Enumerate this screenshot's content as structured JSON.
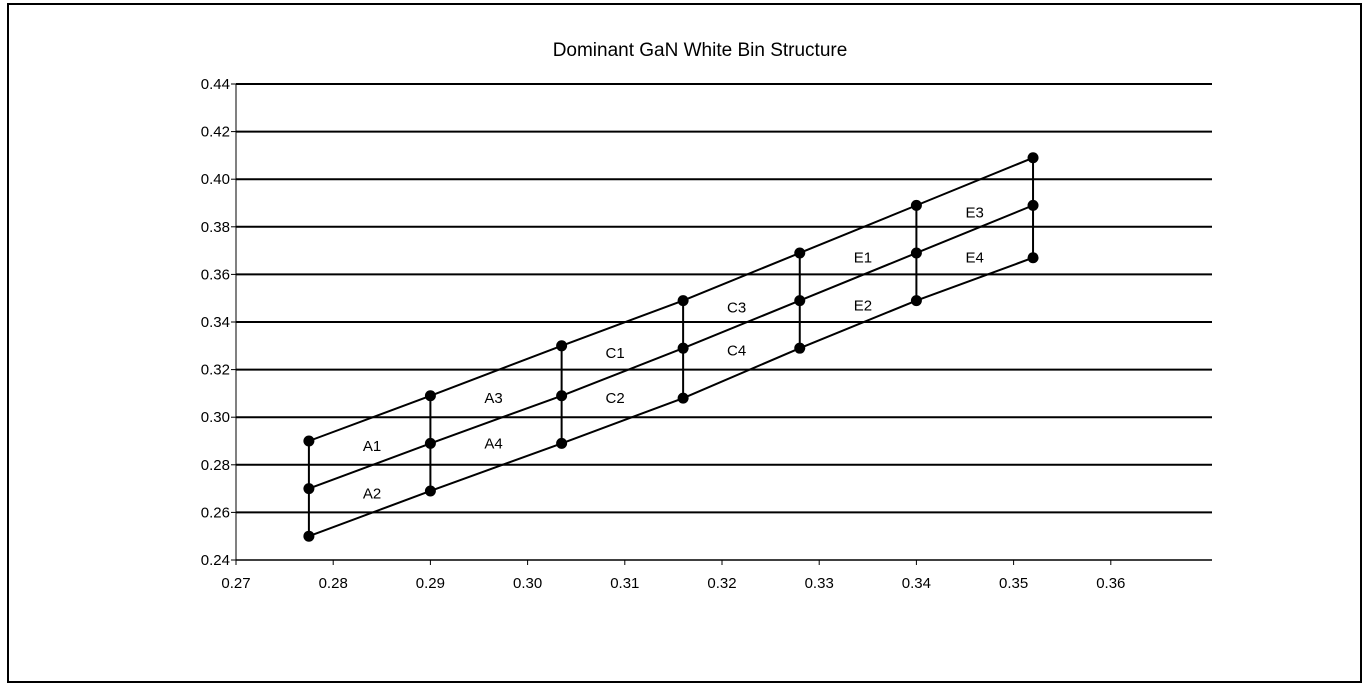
{
  "chart_data": {
    "type": "line",
    "title": "Dominant GaN White Bin Structure",
    "xlabel": "",
    "ylabel": "",
    "xlim": [
      0.27,
      0.37
    ],
    "ylim": [
      0.24,
      0.44
    ],
    "x_ticks": [
      "0.27",
      "0.28",
      "0.29",
      "0.30",
      "0.31",
      "0.32",
      "0.33",
      "0.34",
      "0.35",
      "0.36"
    ],
    "y_ticks": [
      "0.24",
      "0.26",
      "0.28",
      "0.30",
      "0.32",
      "0.34",
      "0.36",
      "0.38",
      "0.40",
      "0.42",
      "0.44"
    ],
    "grid": "horizontal",
    "series": [
      {
        "points": [
          [
            0.2775,
            0.29
          ],
          [
            0.29,
            0.309
          ],
          [
            0.3035,
            0.33
          ],
          [
            0.316,
            0.349
          ],
          [
            0.328,
            0.369
          ],
          [
            0.34,
            0.389
          ],
          [
            0.352,
            0.409
          ]
        ]
      },
      {
        "points": [
          [
            0.2775,
            0.27
          ],
          [
            0.29,
            0.289
          ],
          [
            0.3035,
            0.309
          ],
          [
            0.316,
            0.329
          ],
          [
            0.328,
            0.349
          ],
          [
            0.34,
            0.369
          ],
          [
            0.352,
            0.389
          ]
        ]
      },
      {
        "points": [
          [
            0.2775,
            0.25
          ],
          [
            0.29,
            0.269
          ],
          [
            0.3035,
            0.289
          ],
          [
            0.316,
            0.308
          ],
          [
            0.328,
            0.329
          ],
          [
            0.34,
            0.349
          ],
          [
            0.352,
            0.367
          ]
        ]
      }
    ],
    "bins": [
      {
        "label": "A1",
        "x": 0.284,
        "y": 0.288
      },
      {
        "label": "A2",
        "x": 0.284,
        "y": 0.268
      },
      {
        "label": "A3",
        "x": 0.2965,
        "y": 0.308
      },
      {
        "label": "A4",
        "x": 0.2965,
        "y": 0.289
      },
      {
        "label": "C1",
        "x": 0.309,
        "y": 0.327
      },
      {
        "label": "C2",
        "x": 0.309,
        "y": 0.308
      },
      {
        "label": "C3",
        "x": 0.3215,
        "y": 0.346
      },
      {
        "label": "C4",
        "x": 0.3215,
        "y": 0.328
      },
      {
        "label": "E1",
        "x": 0.3345,
        "y": 0.367
      },
      {
        "label": "E2",
        "x": 0.3345,
        "y": 0.347
      },
      {
        "label": "E3",
        "x": 0.346,
        "y": 0.386
      },
      {
        "label": "E4",
        "x": 0.346,
        "y": 0.367
      }
    ]
  }
}
